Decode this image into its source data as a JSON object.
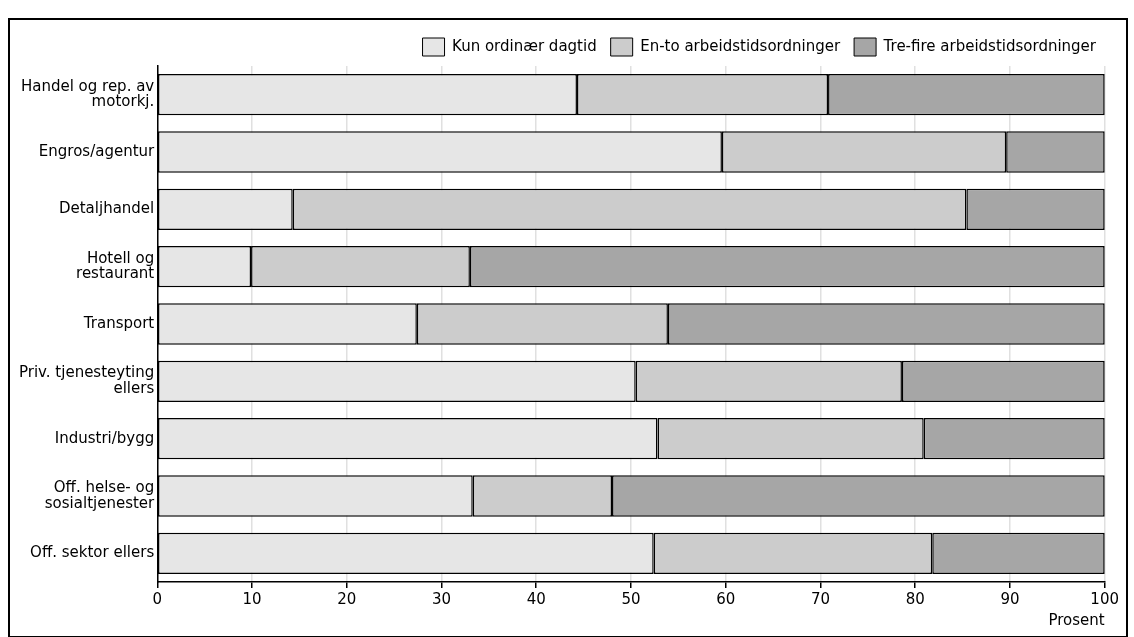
{
  "chart_data": {
    "type": "bar",
    "orientation": "horizontal",
    "stacked": true,
    "categories": [
      "Handel og rep. av motorkj.",
      "Engros/agentur",
      "Detaljhandel",
      "Hotell og restaurant",
      "Transport",
      "Priv. tjenesteyting ellers",
      "Industri/bygg",
      "Off. helse- og sosialtjenester",
      "Off. sektor ellers"
    ],
    "series": [
      {
        "name": "Kun ordinær dagtid",
        "color": "#e6e6e6",
        "values": [
          44.3,
          59.6,
          14.3,
          9.9,
          27.4,
          50.5,
          52.8,
          33.3,
          52.4
        ]
      },
      {
        "name": "En-to arbeidstidsordninger",
        "color": "#cccccc",
        "values": [
          26.5,
          30.0,
          71.1,
          23.1,
          26.5,
          28.1,
          28.1,
          14.7,
          29.4
        ]
      },
      {
        "name": "Tre-fire arbeidstidsordninger",
        "color": "#a6a6a6",
        "values": [
          29.2,
          10.4,
          14.6,
          67.0,
          46.1,
          21.4,
          19.1,
          52.0,
          18.2
        ]
      }
    ],
    "xlabel": "Prosent",
    "xlim": [
      0,
      100
    ],
    "xticks": [
      0,
      10,
      20,
      30,
      40,
      50,
      60,
      70,
      80,
      90,
      100
    ],
    "grid": "x",
    "legend": "top right"
  }
}
